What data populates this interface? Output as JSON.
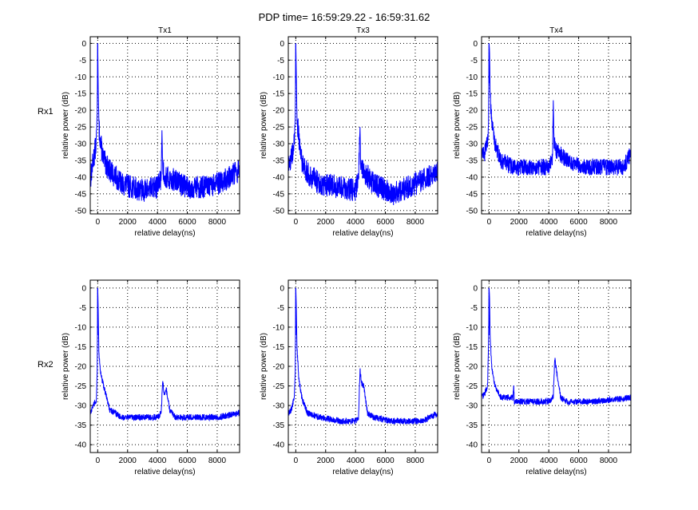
{
  "figure": {
    "suptitle": "PDP time= 16:59:29.22 - 16:59:31.62",
    "line_color": "#0000ff",
    "row_labels": [
      "Rx1",
      "Rx2"
    ],
    "column_titles": [
      "Tx1",
      "Tx3",
      "Tx4"
    ]
  },
  "chart_data": [
    {
      "type": "line",
      "id": "rx1-tx1",
      "title": "Tx1",
      "row_label": "Rx1",
      "xlabel": "relative delay(ns)",
      "ylabel": "relative power (dB)",
      "xlim": [
        -500,
        9500
      ],
      "ylim": [
        -51,
        2
      ],
      "xticks": [
        0,
        2000,
        4000,
        6000,
        8000
      ],
      "xtick_labels": [
        "0",
        "2000",
        "4000",
        "6000",
        "8000"
      ],
      "yticks": [
        0,
        -5,
        -10,
        -15,
        -20,
        -25,
        -30,
        -35,
        -40,
        -45,
        -50
      ],
      "ytick_labels": [
        "0",
        "-5",
        "-10",
        "-15",
        "-20",
        "-25",
        "-30",
        "-35",
        "-40",
        "-45",
        "-50"
      ],
      "grid": true,
      "series": [
        {
          "name": "PDP",
          "noise_db": 3.5,
          "x": [
            -500,
            -300,
            -100,
            -30,
            0,
            30,
            80,
            200,
            400,
            800,
            1600,
            3000,
            4000,
            4250,
            4300,
            4350,
            4500,
            5200,
            6000,
            7500,
            8500,
            9500
          ],
          "y": [
            -41,
            -35,
            -30,
            -20,
            0,
            -13,
            -25,
            -30,
            -35,
            -38,
            -42,
            -44,
            -43,
            -40,
            -26,
            -37,
            -40,
            -41,
            -43,
            -43,
            -41,
            -38
          ]
        }
      ]
    },
    {
      "type": "line",
      "id": "rx1-tx3",
      "title": "Tx3",
      "row_label": "Rx1",
      "xlabel": "relative delay(ns)",
      "ylabel": "relative power (dB)",
      "xlim": [
        -500,
        9500
      ],
      "ylim": [
        -51,
        2
      ],
      "xticks": [
        0,
        2000,
        4000,
        6000,
        8000
      ],
      "xtick_labels": [
        "0",
        "2000",
        "4000",
        "6000",
        "8000"
      ],
      "yticks": [
        0,
        -5,
        -10,
        -15,
        -20,
        -25,
        -30,
        -35,
        -40,
        -45,
        -50
      ],
      "ytick_labels": [
        "0",
        "-5",
        "-10",
        "-15",
        "-20",
        "-25",
        "-30",
        "-35",
        "-40",
        "-45",
        "-50"
      ],
      "grid": true,
      "series": [
        {
          "name": "PDP",
          "noise_db": 3.5,
          "x": [
            -500,
            -300,
            -100,
            -30,
            0,
            30,
            80,
            200,
            400,
            800,
            1600,
            3000,
            4000,
            4200,
            4300,
            4350,
            4500,
            5200,
            6500,
            7500,
            8500,
            9500
          ],
          "y": [
            -37,
            -34,
            -30,
            -22,
            0,
            -8,
            -22,
            -28,
            -35,
            -39,
            -42,
            -43,
            -44,
            -40,
            -25,
            -36,
            -38,
            -42,
            -45,
            -43,
            -41,
            -38
          ]
        }
      ]
    },
    {
      "type": "line",
      "id": "rx1-tx4",
      "title": "Tx4",
      "row_label": "Rx1",
      "xlabel": "relative delay(ns)",
      "ylabel": "relative power (dB)",
      "xlim": [
        -500,
        9500
      ],
      "ylim": [
        -51,
        2
      ],
      "xticks": [
        0,
        2000,
        4000,
        6000,
        8000
      ],
      "xtick_labels": [
        "0",
        "2000",
        "4000",
        "6000",
        "8000"
      ],
      "yticks": [
        0,
        -5,
        -10,
        -15,
        -20,
        -25,
        -30,
        -35,
        -40,
        -45,
        -50
      ],
      "ytick_labels": [
        "0",
        "-5",
        "-10",
        "-15",
        "-20",
        "-25",
        "-30",
        "-35",
        "-40",
        "-45",
        "-50"
      ],
      "grid": true,
      "series": [
        {
          "name": "PDP",
          "noise_db": 2.5,
          "x": [
            -500,
            -300,
            -100,
            -30,
            0,
            30,
            80,
            200,
            400,
            800,
            1600,
            3000,
            4000,
            4250,
            4300,
            4350,
            4500,
            5200,
            6500,
            8000,
            9000,
            9500
          ],
          "y": [
            -32,
            -33,
            -29,
            -24,
            0,
            -2,
            -16,
            -24,
            -30,
            -35,
            -37,
            -37,
            -37,
            -35,
            -17,
            -29,
            -32,
            -35,
            -37,
            -37,
            -37,
            -33
          ]
        }
      ]
    },
    {
      "type": "line",
      "id": "rx2-tx1",
      "title": "",
      "row_label": "Rx2",
      "xlabel": "relative delay(ns)",
      "ylabel": "relative power (dB)",
      "xlim": [
        -500,
        9500
      ],
      "ylim": [
        -42,
        2
      ],
      "xticks": [
        0,
        2000,
        4000,
        6000,
        8000
      ],
      "xtick_labels": [
        "0",
        "2000",
        "4000",
        "6000",
        "8000"
      ],
      "yticks": [
        0,
        -5,
        -10,
        -15,
        -20,
        -25,
        -30,
        -35,
        -40
      ],
      "ytick_labels": [
        "0",
        "-5",
        "-10",
        "-15",
        "-20",
        "-25",
        "-30",
        "-35",
        "-40"
      ],
      "grid": true,
      "series": [
        {
          "name": "PDP",
          "noise_db": 0.8,
          "x": [
            -500,
            -300,
            -100,
            -30,
            0,
            30,
            80,
            200,
            400,
            800,
            1600,
            3000,
            4000,
            4250,
            4350,
            4450,
            4600,
            4800,
            5200,
            6000,
            8000,
            9500
          ],
          "y": [
            -32,
            -30,
            -29,
            -21,
            0,
            -5,
            -17,
            -22,
            -25,
            -31,
            -33,
            -33,
            -33,
            -32,
            -23,
            -27,
            -26,
            -31,
            -33,
            -33,
            -33,
            -32
          ]
        }
      ]
    },
    {
      "type": "line",
      "id": "rx2-tx3",
      "title": "",
      "row_label": "Rx2",
      "xlabel": "relative delay(ns)",
      "ylabel": "relative power (dB)",
      "xlim": [
        -500,
        9500
      ],
      "ylim": [
        -42,
        2
      ],
      "xticks": [
        0,
        2000,
        4000,
        6000,
        8000
      ],
      "xtick_labels": [
        "0",
        "2000",
        "4000",
        "6000",
        "8000"
      ],
      "yticks": [
        0,
        -5,
        -10,
        -15,
        -20,
        -25,
        -30,
        -35,
        -40
      ],
      "ytick_labels": [
        "0",
        "-5",
        "-10",
        "-15",
        "-20",
        "-25",
        "-30",
        "-35",
        "-40"
      ],
      "grid": true,
      "series": [
        {
          "name": "PDP",
          "noise_db": 0.8,
          "x": [
            -500,
            -300,
            -100,
            -30,
            0,
            30,
            80,
            200,
            400,
            800,
            1600,
            3000,
            4000,
            4200,
            4300,
            4400,
            4550,
            4800,
            5200,
            6500,
            8500,
            9500
          ],
          "y": [
            -32,
            -31,
            -28,
            -21,
            0,
            -4,
            -15,
            -23,
            -28,
            -32,
            -33,
            -34,
            -34,
            -33,
            -21,
            -24,
            -25,
            -32,
            -33,
            -34,
            -34,
            -32
          ]
        }
      ]
    },
    {
      "type": "line",
      "id": "rx2-tx4",
      "title": "",
      "row_label": "Rx2",
      "xlabel": "relative delay(ns)",
      "ylabel": "relative power (dB)",
      "xlim": [
        -500,
        9500
      ],
      "ylim": [
        -42,
        2
      ],
      "xticks": [
        0,
        2000,
        4000,
        6000,
        8000
      ],
      "xtick_labels": [
        "0",
        "2000",
        "4000",
        "6000",
        "8000"
      ],
      "yticks": [
        0,
        -5,
        -10,
        -15,
        -20,
        -25,
        -30,
        -35,
        -40
      ],
      "ytick_labels": [
        "0",
        "-5",
        "-10",
        "-15",
        "-20",
        "-25",
        "-30",
        "-35",
        "-40"
      ],
      "grid": true,
      "series": [
        {
          "name": "PDP",
          "noise_db": 0.8,
          "x": [
            -500,
            -300,
            -100,
            -30,
            0,
            30,
            80,
            200,
            400,
            800,
            1600,
            1650,
            1700,
            3000,
            4000,
            4300,
            4400,
            4550,
            4800,
            5200,
            7000,
            9500
          ],
          "y": [
            -28,
            -27,
            -25,
            -14,
            0,
            -2,
            -13,
            -21,
            -25,
            -28,
            -28,
            -25,
            -29,
            -29,
            -29,
            -28,
            -18,
            -22,
            -28,
            -29,
            -29,
            -28
          ]
        }
      ]
    }
  ]
}
